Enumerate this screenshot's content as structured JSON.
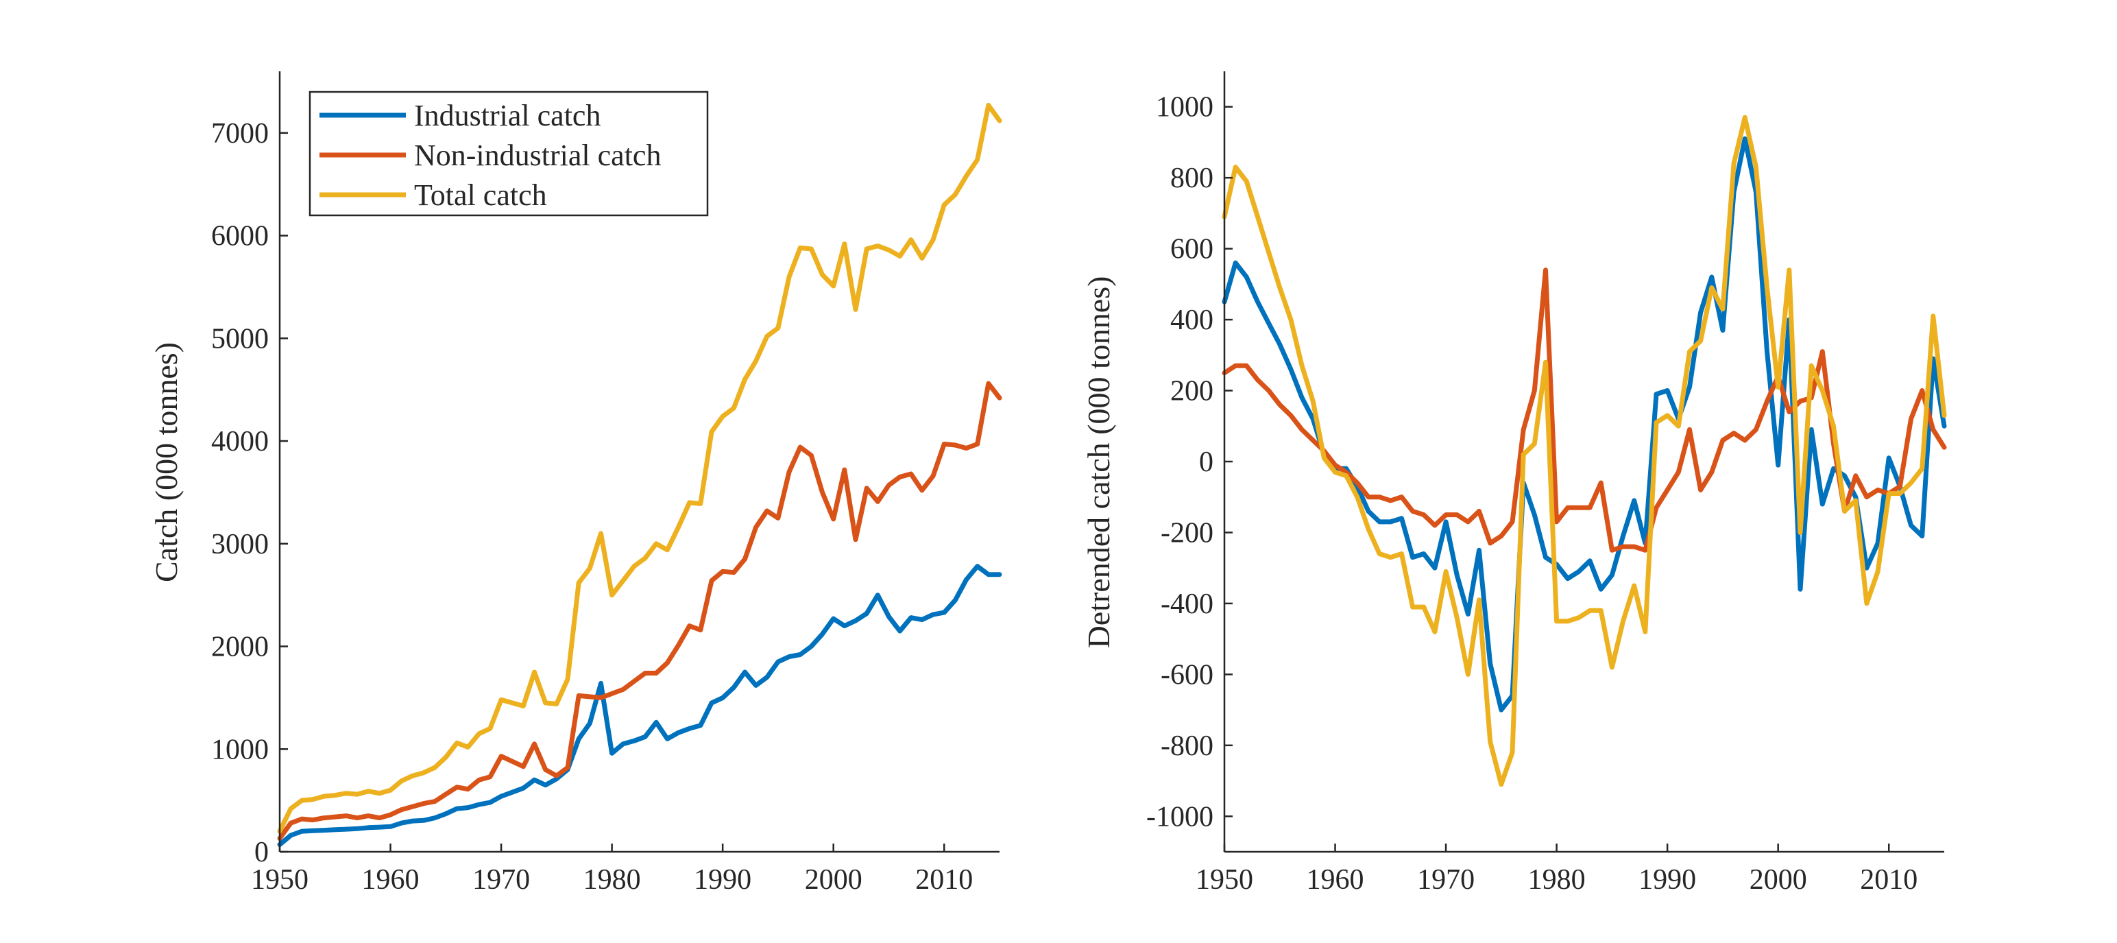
{
  "chart_data": [
    {
      "type": "line",
      "title": "",
      "xlabel": "",
      "ylabel": "Catch (000 tonnes)",
      "xlim": [
        1950,
        2015
      ],
      "ylim": [
        0,
        7600
      ],
      "xticks": [
        1950,
        1960,
        1970,
        1980,
        1990,
        2000,
        2010
      ],
      "yticks": [
        0,
        1000,
        2000,
        3000,
        4000,
        5000,
        6000,
        7000
      ],
      "xtick_labels": [
        "1950",
        "1960",
        "1970",
        "1980",
        "1990",
        "2000",
        "2010"
      ],
      "ytick_labels": [
        "0",
        "1000",
        "2000",
        "3000",
        "4000",
        "5000",
        "6000",
        "7000"
      ],
      "legend_position": "top-left",
      "grid": false,
      "x": [
        1950,
        1951,
        1952,
        1953,
        1954,
        1955,
        1956,
        1957,
        1958,
        1959,
        1960,
        1961,
        1962,
        1963,
        1964,
        1965,
        1966,
        1967,
        1968,
        1969,
        1970,
        1971,
        1972,
        1973,
        1974,
        1975,
        1976,
        1977,
        1978,
        1979,
        1980,
        1981,
        1982,
        1983,
        1984,
        1985,
        1986,
        1987,
        1988,
        1989,
        1990,
        1991,
        1992,
        1993,
        1994,
        1995,
        1996,
        1997,
        1998,
        1999,
        2000,
        2001,
        2002,
        2003,
        2004,
        2005,
        2006,
        2007,
        2008,
        2009,
        2010,
        2011,
        2012,
        2013,
        2014,
        2015
      ],
      "series": [
        {
          "name": "Industrial catch",
          "color": "#0072BD",
          "values": [
            70,
            160,
            200,
            205,
            210,
            215,
            220,
            225,
            235,
            240,
            245,
            280,
            300,
            305,
            330,
            370,
            420,
            430,
            460,
            480,
            540,
            580,
            620,
            700,
            650,
            710,
            800,
            1100,
            1250,
            1640,
            960,
            1050,
            1080,
            1120,
            1260,
            1100,
            1160,
            1200,
            1230,
            1450,
            1500,
            1600,
            1750,
            1620,
            1700,
            1850,
            1900,
            1920,
            2000,
            2120,
            2270,
            2200,
            2250,
            2320,
            2500,
            2290,
            2150,
            2280,
            2260,
            2310,
            2330,
            2450,
            2650,
            2780,
            2700,
            2700
          ]
        },
        {
          "name": "Non-industrial catch",
          "color": "#D95319",
          "values": [
            130,
            280,
            320,
            310,
            330,
            340,
            350,
            330,
            350,
            330,
            360,
            410,
            440,
            470,
            490,
            560,
            630,
            610,
            700,
            730,
            930,
            880,
            830,
            1050,
            800,
            740,
            820,
            1520,
            1510,
            1500,
            1540,
            1580,
            1660,
            1740,
            1740,
            1840,
            2010,
            2200,
            2160,
            2640,
            2730,
            2720,
            2850,
            3160,
            3320,
            3250,
            3700,
            3940,
            3860,
            3500,
            3240,
            3720,
            3040,
            3540,
            3410,
            3570,
            3650,
            3680,
            3520,
            3660,
            3970,
            3960,
            3930,
            3970,
            4560,
            4420
          ]
        },
        {
          "name": "Total catch",
          "color": "#EDB120",
          "values": [
            200,
            420,
            500,
            510,
            540,
            550,
            570,
            560,
            590,
            570,
            600,
            690,
            740,
            770,
            820,
            920,
            1060,
            1020,
            1150,
            1200,
            1480,
            1450,
            1420,
            1750,
            1450,
            1440,
            1680,
            2620,
            2760,
            3100,
            2500,
            2640,
            2780,
            2860,
            3000,
            2940,
            3160,
            3400,
            3390,
            4090,
            4240,
            4320,
            4600,
            4780,
            5020,
            5100,
            5600,
            5880,
            5870,
            5620,
            5510,
            5920,
            5280,
            5870,
            5900,
            5860,
            5800,
            5960,
            5780,
            5960,
            6300,
            6400,
            6580,
            6740,
            7270,
            7120
          ]
        }
      ]
    },
    {
      "type": "line",
      "title": "",
      "xlabel": "",
      "ylabel": "Detrended catch (000 tonnes)",
      "xlim": [
        1950,
        2015
      ],
      "ylim": [
        -1100,
        1100
      ],
      "xticks": [
        1950,
        1960,
        1970,
        1980,
        1990,
        2000,
        2010
      ],
      "yticks": [
        -1000,
        -800,
        -600,
        -400,
        -200,
        0,
        200,
        400,
        600,
        800,
        1000
      ],
      "xtick_labels": [
        "1950",
        "1960",
        "1970",
        "1980",
        "1990",
        "2000",
        "2010"
      ],
      "ytick_labels": [
        "-1000",
        "-800",
        "-600",
        "-400",
        "-200",
        "0",
        "200",
        "400",
        "600",
        "800",
        "1000"
      ],
      "grid": false,
      "x": [
        1950,
        1951,
        1952,
        1953,
        1954,
        1955,
        1956,
        1957,
        1958,
        1959,
        1960,
        1961,
        1962,
        1963,
        1964,
        1965,
        1966,
        1967,
        1968,
        1969,
        1970,
        1971,
        1972,
        1973,
        1974,
        1975,
        1976,
        1977,
        1978,
        1979,
        1980,
        1981,
        1982,
        1983,
        1984,
        1985,
        1986,
        1987,
        1988,
        1989,
        1990,
        1991,
        1992,
        1993,
        1994,
        1995,
        1996,
        1997,
        1998,
        1999,
        2000,
        2001,
        2002,
        2003,
        2004,
        2005,
        2006,
        2007,
        2008,
        2009,
        2010,
        2011,
        2012,
        2013,
        2014,
        2015
      ],
      "series": [
        {
          "color": "#0072BD",
          "values": [
            450,
            560,
            520,
            450,
            390,
            330,
            260,
            180,
            120,
            20,
            -20,
            -20,
            -70,
            -140,
            -170,
            -170,
            -160,
            -270,
            -260,
            -300,
            -170,
            -320,
            -430,
            -250,
            -570,
            -700,
            -660,
            -60,
            -150,
            -270,
            -290,
            -330,
            -310,
            -280,
            -360,
            -320,
            -210,
            -110,
            -230,
            190,
            200,
            120,
            210,
            420,
            520,
            370,
            760,
            910,
            760,
            310,
            -10,
            400,
            -360,
            90,
            -120,
            -20,
            -40,
            -100,
            -300,
            -230,
            10,
            -70,
            -180,
            -210,
            290,
            100
          ]
        },
        {
          "color": "#D95319",
          "values": [
            250,
            270,
            270,
            230,
            200,
            160,
            130,
            90,
            60,
            30,
            -10,
            -30,
            -60,
            -100,
            -100,
            -110,
            -100,
            -140,
            -150,
            -180,
            -150,
            -150,
            -170,
            -140,
            -230,
            -210,
            -170,
            90,
            200,
            540,
            -170,
            -130,
            -130,
            -130,
            -60,
            -250,
            -240,
            -240,
            -250,
            -130,
            -80,
            -30,
            90,
            -80,
            -30,
            60,
            80,
            60,
            90,
            170,
            240,
            140,
            170,
            180,
            310,
            50,
            -140,
            -40,
            -100,
            -80,
            -90,
            -70,
            120,
            200,
            90,
            40
          ]
        },
        {
          "color": "#EDB120",
          "values": [
            690,
            830,
            790,
            690,
            590,
            490,
            400,
            270,
            170,
            10,
            -30,
            -40,
            -100,
            -190,
            -260,
            -270,
            -260,
            -410,
            -410,
            -480,
            -310,
            -440,
            -600,
            -390,
            -790,
            -910,
            -820,
            20,
            50,
            280,
            -450,
            -450,
            -440,
            -420,
            -420,
            -580,
            -450,
            -350,
            -480,
            110,
            130,
            100,
            310,
            340,
            490,
            430,
            840,
            970,
            830,
            490,
            210,
            540,
            -200,
            270,
            200,
            100,
            -140,
            -110,
            -400,
            -310,
            -90,
            -90,
            -60,
            -20,
            410,
            130
          ]
        }
      ]
    }
  ]
}
